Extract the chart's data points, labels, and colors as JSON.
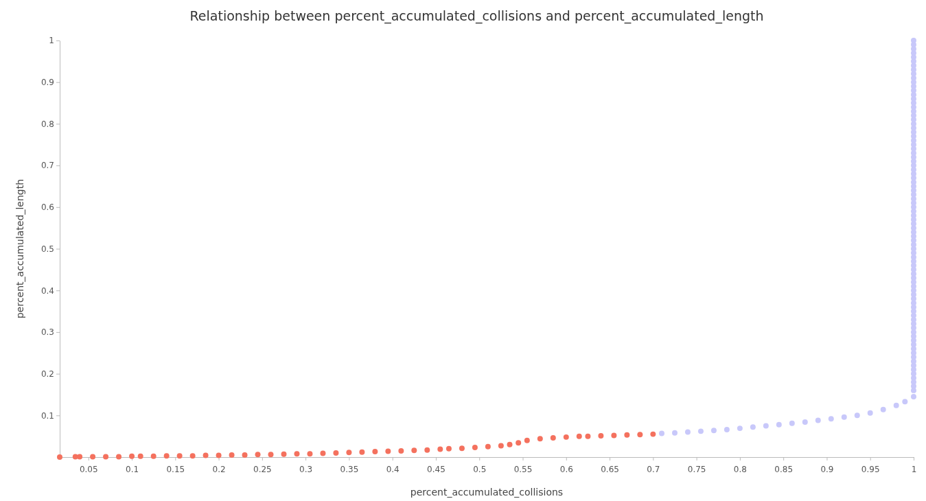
{
  "chart_data": {
    "type": "scatter",
    "title": "Relationship between percent_accumulated_collisions and percent_accumulated_length",
    "xlabel": "percent_accumulated_collisions",
    "ylabel": "percent_accumulated_length",
    "marker": "circle",
    "grid": false,
    "xlim": [
      0.017,
      1
    ],
    "ylim": [
      0,
      1
    ],
    "xticks": [
      0.05,
      0.1,
      0.15,
      0.2,
      0.25,
      0.3,
      0.35,
      0.4,
      0.45,
      0.5,
      0.55,
      0.6,
      0.65,
      0.7,
      0.75,
      0.8,
      0.85,
      0.9,
      0.95,
      1
    ],
    "yticks": [
      0.1,
      0.2,
      0.3,
      0.4,
      0.5,
      0.6,
      0.7,
      0.8,
      0.9,
      1
    ],
    "series": [
      {
        "color": "#f4715e",
        "x": [
          0.017,
          0.035,
          0.04,
          0.055,
          0.07,
          0.085,
          0.1,
          0.11,
          0.125,
          0.14,
          0.155,
          0.17,
          0.185,
          0.2,
          0.215,
          0.23,
          0.245,
          0.26,
          0.275,
          0.29,
          0.305,
          0.32,
          0.335,
          0.35,
          0.365,
          0.38,
          0.395,
          0.41,
          0.425,
          0.44,
          0.455,
          0.465,
          0.48,
          0.495,
          0.51,
          0.525,
          0.535,
          0.545,
          0.555,
          0.57,
          0.585,
          0.6,
          0.615,
          0.625,
          0.64,
          0.655,
          0.67,
          0.685,
          0.7
        ],
        "values": [
          0,
          0.001,
          0.001,
          0.001,
          0.001,
          0.001,
          0.002,
          0.002,
          0.002,
          0.003,
          0.003,
          0.003,
          0.004,
          0.004,
          0.005,
          0.005,
          0.006,
          0.006,
          0.007,
          0.008,
          0.008,
          0.009,
          0.01,
          0.011,
          0.012,
          0.013,
          0.014,
          0.015,
          0.016,
          0.017,
          0.019,
          0.02,
          0.021,
          0.023,
          0.025,
          0.027,
          0.03,
          0.034,
          0.04,
          0.044,
          0.046,
          0.048,
          0.05,
          0.05,
          0.051,
          0.052,
          0.053,
          0.054,
          0.055
        ]
      },
      {
        "color": "#c8c8fa",
        "x": [
          0.71,
          0.725,
          0.74,
          0.755,
          0.77,
          0.785,
          0.8,
          0.815,
          0.83,
          0.845,
          0.86,
          0.875,
          0.89,
          0.905,
          0.92,
          0.935,
          0.95,
          0.965,
          0.98,
          0.99,
          1,
          1,
          1,
          1,
          1,
          1,
          1,
          1,
          1,
          1,
          1,
          1,
          1,
          1,
          1,
          1,
          1,
          1,
          1,
          1,
          1,
          1,
          1,
          1,
          1,
          1,
          1,
          1,
          1,
          1,
          1,
          1,
          1,
          1,
          1,
          1,
          1,
          1,
          1,
          1,
          1,
          1,
          1,
          1,
          1,
          1,
          1,
          1,
          1,
          1,
          1,
          1,
          1,
          1,
          1,
          1,
          1,
          1,
          1,
          1,
          1,
          1,
          1,
          1,
          1,
          1,
          1,
          1,
          1,
          1,
          1,
          1,
          1,
          1,
          1,
          1,
          1,
          1,
          1,
          1,
          1,
          1,
          1,
          1,
          1,
          1
        ],
        "values": [
          0.057,
          0.058,
          0.06,
          0.062,
          0.064,
          0.066,
          0.069,
          0.072,
          0.075,
          0.078,
          0.081,
          0.084,
          0.088,
          0.092,
          0.096,
          0.1,
          0.106,
          0.114,
          0.124,
          0.133,
          0.145,
          0.16,
          0.17,
          0.18,
          0.19,
          0.2,
          0.21,
          0.22,
          0.23,
          0.24,
          0.25,
          0.26,
          0.27,
          0.28,
          0.29,
          0.3,
          0.31,
          0.32,
          0.33,
          0.34,
          0.35,
          0.36,
          0.37,
          0.38,
          0.39,
          0.4,
          0.41,
          0.42,
          0.43,
          0.44,
          0.45,
          0.46,
          0.47,
          0.48,
          0.49,
          0.5,
          0.51,
          0.52,
          0.53,
          0.54,
          0.55,
          0.56,
          0.57,
          0.58,
          0.59,
          0.6,
          0.61,
          0.62,
          0.63,
          0.64,
          0.65,
          0.66,
          0.67,
          0.68,
          0.69,
          0.7,
          0.71,
          0.72,
          0.73,
          0.74,
          0.75,
          0.76,
          0.77,
          0.78,
          0.79,
          0.8,
          0.81,
          0.82,
          0.83,
          0.84,
          0.85,
          0.86,
          0.87,
          0.88,
          0.89,
          0.9,
          0.91,
          0.92,
          0.93,
          0.94,
          0.95,
          0.96,
          0.97,
          0.98,
          0.99,
          1
        ]
      }
    ]
  }
}
